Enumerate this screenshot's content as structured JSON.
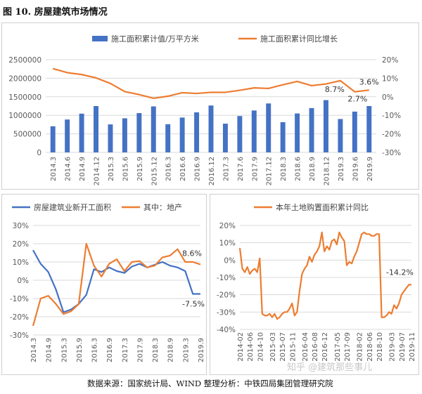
{
  "page": {
    "title": "图 10. 房屋建筑市场情况",
    "footer": "数据来源：国家统计局、WIND   整理分析：中铁四局集团管理研究院",
    "watermark": "知乎 @建筑那些事儿"
  },
  "colors": {
    "blue": "#4472c4",
    "orange": "#ed7d31",
    "grid": "#d9d9d9",
    "axis_text": "#595959"
  },
  "chart_data": [
    {
      "id": "top",
      "type": "bar",
      "legend_position": "top",
      "categories": [
        "2014.3",
        "2014.6",
        "2014.9",
        "2014.12",
        "2015.3",
        "2015.6",
        "2015.9",
        "2015.12",
        "2016.3",
        "2016.6",
        "2016.9",
        "2016.12",
        "2017.3",
        "2017.6",
        "2017.9",
        "2017.12",
        "2018.3",
        "2018.6",
        "2018.9",
        "2018.12",
        "2019.3",
        "2019.6",
        "2019.9"
      ],
      "series": [
        {
          "name": "施工面积累计值/万平方米",
          "type": "bar",
          "axis": "left",
          "color": "#4472c4",
          "values": [
            705000,
            887000,
            1045000,
            1250000,
            755000,
            920000,
            1060000,
            1240000,
            760000,
            940000,
            1080000,
            1265000,
            775000,
            980000,
            1130000,
            1320000,
            815000,
            1050000,
            1195000,
            1410000,
            900000,
            1100000,
            1250000
          ]
        },
        {
          "name": "施工面积累计同比增长",
          "type": "line",
          "axis": "right",
          "color": "#ed7d31",
          "values": [
            15.2,
            13.0,
            12.0,
            10.2,
            7.2,
            2.8,
            1.2,
            -0.8,
            0.3,
            2.2,
            1.8,
            2.4,
            2.4,
            3.5,
            4.8,
            4.5,
            6.5,
            8.3,
            6.0,
            6.9,
            8.7,
            2.7,
            3.6
          ]
        }
      ],
      "ylim": [
        0,
        2500000
      ],
      "yticks": [
        "0",
        "500000",
        "1000000",
        "1500000",
        "2000000",
        "2500000"
      ],
      "y2lim": [
        -30,
        20
      ],
      "y2ticks": [
        "-30%",
        "-20%",
        "-10%",
        "0%",
        "10%",
        "20%"
      ],
      "annotations": [
        {
          "label": "8.7%",
          "index": 20,
          "axis": "right",
          "value": 8.7
        },
        {
          "label": "2.7%",
          "index": 21,
          "axis": "right",
          "value": 2.7
        },
        {
          "label": "3.6%",
          "index": 22,
          "axis": "right",
          "value": 3.6
        }
      ]
    },
    {
      "id": "bottom-left",
      "type": "line",
      "legend_position": "top",
      "categories": [
        "2014.3",
        "2014.6",
        "2014.9",
        "2014.12",
        "2015.3",
        "2015.6",
        "2015.9",
        "2015.12",
        "2016.3",
        "2016.6",
        "2016.9",
        "2016.12",
        "2017.3",
        "2017.6",
        "2017.9",
        "2017.12",
        "2018.3",
        "2018.6",
        "2018.9",
        "2018.12",
        "2019.3",
        "2019.6",
        "2019.9"
      ],
      "xticks": [
        "2014.3",
        "2014.9",
        "2015.3",
        "2015.9",
        "2016.3",
        "2016.9",
        "2017.3",
        "2017.9",
        "2018.3",
        "2018.9",
        "2019.3",
        "2019.9"
      ],
      "series": [
        {
          "name": "房屋建筑业新开工面积",
          "color": "#4472c4",
          "values": [
            16.5,
            9,
            4.5,
            -5,
            -17.5,
            -16,
            -13,
            -8,
            6,
            4.5,
            7,
            5,
            4,
            7.5,
            9,
            7,
            8.5,
            10,
            8,
            7,
            5,
            -7.5,
            -7.5
          ]
        },
        {
          "name": "其中：地产",
          "color": "#ed7d31",
          "values": [
            -25,
            -10,
            -8.5,
            -13,
            -18.5,
            -17,
            -13,
            20,
            8,
            2,
            9,
            11.5,
            5,
            10,
            10.5,
            7,
            8,
            12.5,
            13.5,
            17,
            10,
            10,
            8.6
          ]
        }
      ],
      "ylim": [
        -30,
        30
      ],
      "yticks": [
        "-30%",
        "-20%",
        "-10%",
        "0%",
        "10%",
        "20%",
        "30%"
      ],
      "annotations": [
        {
          "label": "8.6%",
          "series": 1,
          "index": 22
        },
        {
          "label": "-7.5%",
          "series": 0,
          "index": 22
        }
      ]
    },
    {
      "id": "bottom-right",
      "type": "line",
      "legend_position": "top",
      "x": [
        "2014-02",
        "2014-03",
        "2014-04",
        "2014-05",
        "2014-06",
        "2014-07",
        "2014-08",
        "2014-09",
        "2014-10",
        "2014-11",
        "2014-12",
        "2015-01",
        "2015-02",
        "2015-03",
        "2015-04",
        "2015-05",
        "2015-06",
        "2015-07",
        "2015-08",
        "2015-09",
        "2015-10",
        "2015-11",
        "2015-12",
        "2016-01",
        "2016-02",
        "2016-03",
        "2016-04",
        "2016-05",
        "2016-06",
        "2016-07",
        "2016-08",
        "2016-09",
        "2016-10",
        "2016-11",
        "2016-12",
        "2017-01",
        "2017-02",
        "2017-03",
        "2017-04",
        "2017-05",
        "2017-06",
        "2017-07",
        "2017-08",
        "2017-09",
        "2017-10",
        "2017-11",
        "2017-12",
        "2018-01",
        "2018-02",
        "2018-03",
        "2018-04",
        "2018-05",
        "2018-06",
        "2018-07",
        "2018-08",
        "2018-09",
        "2018-10",
        "2018-11",
        "2018-12",
        "2019-01",
        "2019-02",
        "2019-03",
        "2019-04",
        "2019-05",
        "2019-06",
        "2019-07",
        "2019-08",
        "2019-09",
        "2019-10",
        "2019-11"
      ],
      "xticks": [
        "2014-02",
        "2014-06",
        "2014-10",
        "2015-03",
        "2015-07",
        "2015-11",
        "2016-04",
        "2016-08",
        "2016-12",
        "2017-05",
        "2017-09",
        "2018-02",
        "2018-06",
        "2018-10",
        "2019-03",
        "2019-07",
        "2019-11"
      ],
      "series": [
        {
          "name": "本年土地购置面积累计同比",
          "color": "#ed7d31",
          "values": [
            7,
            -5,
            -7,
            -4,
            -8,
            -6,
            -5,
            -7,
            1,
            -31,
            -32,
            -32,
            -31,
            -33,
            -31,
            -34,
            -33,
            -31,
            -30,
            -30,
            -28,
            -25,
            -32,
            -30,
            -18,
            -8,
            -5,
            -3,
            2,
            -1,
            3,
            5,
            8,
            16,
            5,
            8,
            6,
            11,
            12,
            9,
            16,
            13,
            11,
            -3,
            -1,
            -2,
            2,
            5,
            10,
            15,
            16,
            15,
            15,
            14,
            14,
            15,
            15,
            -33,
            -33,
            -32,
            -30,
            -31,
            -26,
            -28,
            -25,
            -20,
            -18,
            -16,
            -14.2,
            -14.2
          ],
          "note": ""
        }
      ],
      "ylim": [
        -40,
        20
      ],
      "yticks": [
        "-40%",
        "-30%",
        "-20%",
        "-10%",
        "0%",
        "10%",
        "20%"
      ],
      "annotations": [
        {
          "label": "-14.2%",
          "series": 0,
          "index": 69
        }
      ]
    }
  ]
}
